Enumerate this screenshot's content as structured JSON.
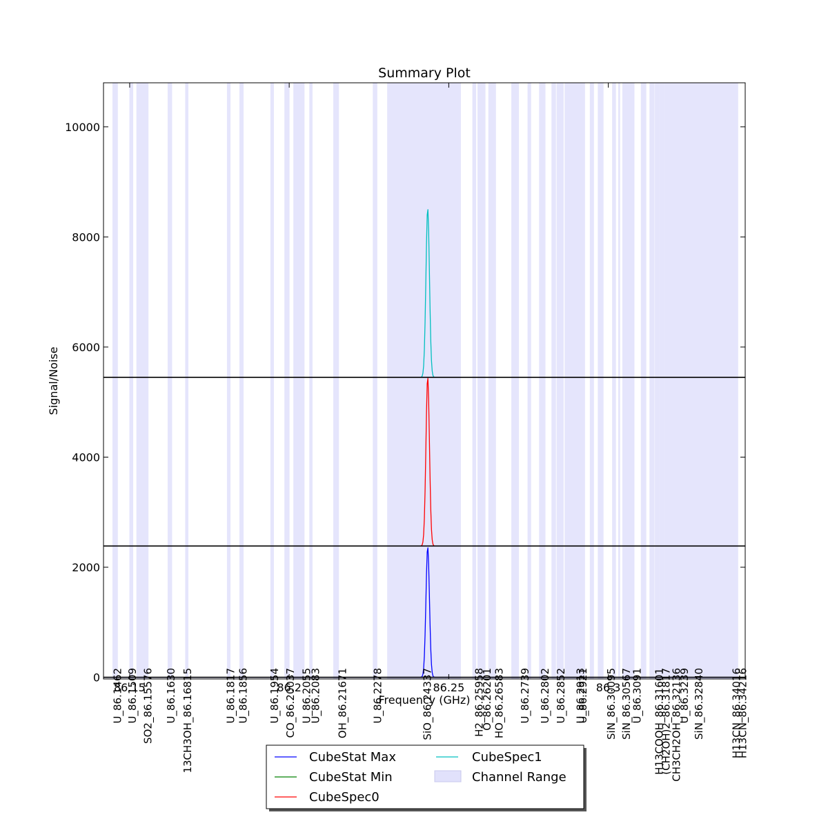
{
  "chart_data": {
    "type": "line",
    "title": "Summary Plot",
    "xlabel": "Frequency (GHz)",
    "ylabel": "Signal/Noise",
    "xlim": [
      86.1418,
      86.3429
    ],
    "ylim": [
      -30,
      10800
    ],
    "y_ticks": [
      0,
      2000,
      4000,
      6000,
      8000,
      10000
    ],
    "x_ticks": [
      86.15,
      86.2,
      86.25,
      86.3
    ],
    "x_tick_labels": [
      "86.15",
      "86.2",
      "86.25",
      "86.3"
    ],
    "channel_ranges": [
      [
        86.1446,
        86.1463
      ],
      [
        86.1499,
        86.1511
      ],
      [
        86.1521,
        86.1559
      ],
      [
        86.1619,
        86.1633
      ],
      [
        86.1674,
        86.1684
      ],
      [
        86.1805,
        86.1816
      ],
      [
        86.1844,
        86.1857
      ],
      [
        86.1941,
        86.1952
      ],
      [
        86.1985,
        86.2001
      ],
      [
        86.2013,
        86.2048
      ],
      [
        86.2063,
        86.2073
      ],
      [
        86.2138,
        86.2156
      ],
      [
        86.2262,
        86.2276
      ],
      [
        86.2307,
        86.2538
      ],
      [
        86.2574,
        86.2586
      ],
      [
        86.259,
        86.2615
      ],
      [
        86.2624,
        86.2648
      ],
      [
        86.2696,
        86.272
      ],
      [
        86.2747,
        86.2758
      ],
      [
        86.2783,
        86.2803
      ],
      [
        86.2822,
        86.2836
      ],
      [
        86.2838,
        86.286
      ],
      [
        86.2863,
        86.2927
      ],
      [
        86.2942,
        86.2955
      ],
      [
        86.2967,
        86.2985
      ],
      [
        86.3012,
        86.3024
      ],
      [
        86.3031,
        86.3037
      ],
      [
        86.3044,
        86.3082
      ],
      [
        86.3102,
        86.3119
      ],
      [
        86.3129,
        86.3145
      ],
      [
        86.3146,
        86.316
      ],
      [
        86.316,
        86.3174
      ],
      [
        86.3174,
        86.3407
      ]
    ],
    "line_labels": [
      {
        "freq": 86.1462,
        "text": "U_86.1462"
      },
      {
        "freq": 86.1509,
        "text": "U_86.1509"
      },
      {
        "freq": 86.15576,
        "text": "SO2_86.15576"
      },
      {
        "freq": 86.163,
        "text": "U_86.1630"
      },
      {
        "freq": 86.16815,
        "text": "13CH3OH_86.16815"
      },
      {
        "freq": 86.1817,
        "text": "U_86.1817"
      },
      {
        "freq": 86.1856,
        "text": "U_86.1856"
      },
      {
        "freq": 86.1954,
        "text": "U_86.1954"
      },
      {
        "freq": 86.20037,
        "text": "CO_86.20037"
      },
      {
        "freq": 86.2055,
        "text": "U_86.2055"
      },
      {
        "freq": 86.2083,
        "text": "U_86.2083"
      },
      {
        "freq": 86.21671,
        "text": "OH_86.21671"
      },
      {
        "freq": 86.2278,
        "text": "U_86.2278"
      },
      {
        "freq": 86.24337,
        "text": "SiO_86.24337"
      },
      {
        "freq": 86.25958,
        "text": "H2_86.25958"
      },
      {
        "freq": 86.26201,
        "text": "O_86.26201"
      },
      {
        "freq": 86.26583,
        "text": "HO_86.26583"
      },
      {
        "freq": 86.2739,
        "text": "U_86.2739"
      },
      {
        "freq": 86.2802,
        "text": "U_86.2802"
      },
      {
        "freq": 86.2852,
        "text": "U_86.2852"
      },
      {
        "freq": 86.2913,
        "text": "U_86.2913"
      },
      {
        "freq": 86.2921,
        "text": "U_86.2921"
      },
      {
        "freq": 86.30095,
        "text": "SiN_86.30095"
      },
      {
        "freq": 86.30567,
        "text": "SiN_86.30567"
      },
      {
        "freq": 86.3091,
        "text": "U_86.3091"
      },
      {
        "freq": 86.31601,
        "text": "H13COOH_86.31601"
      },
      {
        "freq": 86.31817,
        "text": "(CH2OH)2_86.31817"
      },
      {
        "freq": 86.32136,
        "text": "CH3CH2OH_86.32136"
      },
      {
        "freq": 86.3239,
        "text": "U_86.3239"
      },
      {
        "freq": 86.3284,
        "text": "SiN_86.32840"
      },
      {
        "freq": 86.34016,
        "text": "H13CN_86.34016"
      },
      {
        "freq": 86.34216,
        "text": "H13CN_86.34216"
      }
    ],
    "series": [
      {
        "name": "CubeStat Max",
        "color": "#0000ff",
        "baseline": 0,
        "peak_freq": 86.2434,
        "peak_height": 2370,
        "peak_sigma": 0.00055
      },
      {
        "name": "CubeStat Min",
        "color": "#008000",
        "baseline": 2385,
        "peak_freq": 86.2434,
        "peak_height": 0,
        "peak_sigma": 0.00055
      },
      {
        "name": "CubeSpec0",
        "color": "#ff0000",
        "baseline": 2385,
        "peak_freq": 86.2434,
        "peak_height": 3070,
        "peak_sigma": 0.00055
      },
      {
        "name": "CubeSpec1",
        "color": "#00bfbf",
        "baseline": 5450,
        "peak_freq": 86.2434,
        "peak_height": 3070,
        "peak_sigma": 0.00055
      }
    ],
    "reference_lines": [
      0,
      2385,
      5450
    ],
    "legend": {
      "entries": [
        "CubeStat Max",
        "CubeStat Min",
        "CubeSpec0",
        "CubeSpec1",
        "Channel Range"
      ],
      "placement": "bottom-center"
    },
    "channel_color": "#e1e1fb",
    "grid": false
  }
}
